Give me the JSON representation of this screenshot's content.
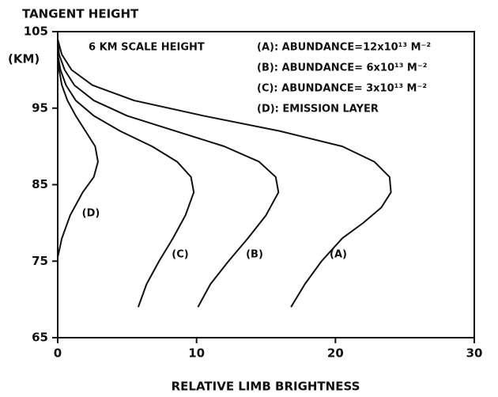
{
  "chart_data": {
    "type": "line",
    "title": "TANGENT HEIGHT",
    "y_label": "(KM)",
    "x_label": "RELATIVE LIMB BRIGHTNESS",
    "annotations": [
      "6 KM SCALE HEIGHT",
      "(A): ABUNDANCE=12x10¹³ M⁻²",
      "(B): ABUNDANCE= 6x10¹³ M⁻²",
      "(C): ABUNDANCE= 3x10¹³ M⁻²",
      "(D): EMISSION LAYER"
    ],
    "xlim": [
      0,
      30
    ],
    "ylim": [
      65,
      105
    ],
    "xticks": [
      0,
      10,
      20,
      30
    ],
    "yticks": [
      65,
      75,
      85,
      95,
      105
    ],
    "series": [
      {
        "name": "(A)",
        "color": "#111111",
        "x": [
          16.8,
          17.8,
          19.0,
          20.5,
          22,
          23.3,
          24.0,
          23.9,
          22.8,
          20.5,
          16,
          10.5,
          5.5,
          2.5,
          1.0,
          0.3,
          0
        ],
        "values": [
          69,
          72,
          75,
          78,
          80,
          82,
          84,
          86,
          88,
          90,
          92,
          94,
          96,
          98,
          100,
          102,
          104
        ]
      },
      {
        "name": "(B)",
        "color": "#111111",
        "x": [
          10.1,
          11,
          12.3,
          13.7,
          15,
          15.9,
          15.7,
          14.5,
          12,
          8.5,
          5,
          2.6,
          1.2,
          0.5,
          0.1,
          0
        ],
        "values": [
          69,
          72,
          75,
          78,
          81,
          84,
          86,
          88,
          90,
          92,
          94,
          96,
          98,
          100,
          102,
          104
        ]
      },
      {
        "name": "(C)",
        "color": "#111111",
        "x": [
          5.8,
          6.4,
          7.3,
          8.3,
          9.2,
          9.8,
          9.6,
          8.6,
          6.8,
          4.5,
          2.6,
          1.3,
          0.6,
          0.2,
          0
        ],
        "values": [
          69,
          72,
          75,
          78,
          81,
          84,
          86,
          88,
          90,
          92,
          94,
          96,
          98,
          100,
          102
        ]
      },
      {
        "name": "(D)",
        "color": "#111111",
        "x": [
          0,
          0.3,
          0.9,
          1.8,
          2.6,
          2.9,
          2.7,
          2.0,
          1.3,
          0.7,
          0.3,
          0.1,
          0
        ],
        "values": [
          75.5,
          78,
          81,
          84,
          86,
          88,
          90,
          92,
          94,
          96,
          98,
          100,
          102
        ]
      }
    ]
  }
}
